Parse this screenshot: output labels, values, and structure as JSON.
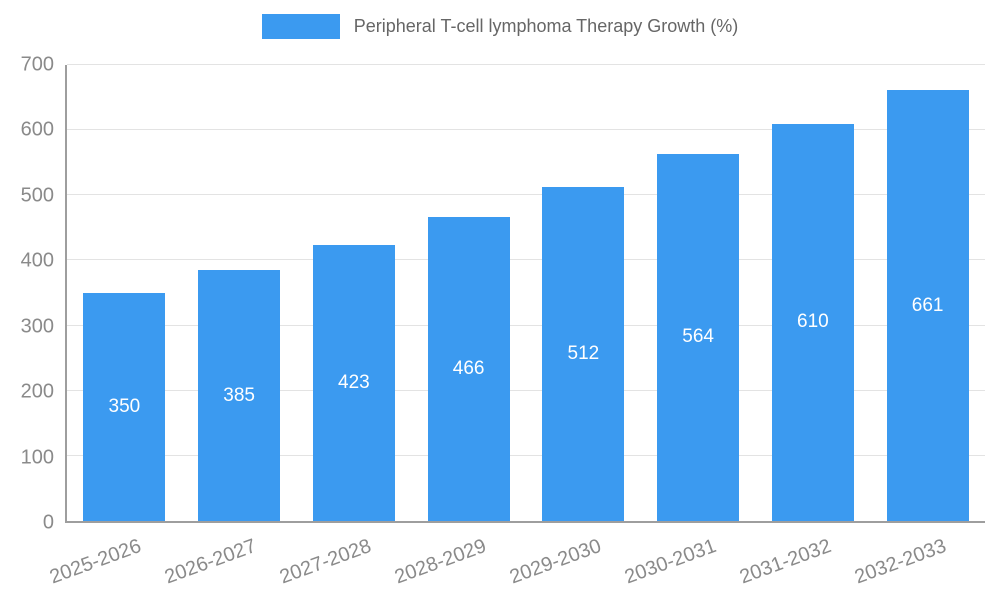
{
  "chart_data": {
    "type": "bar",
    "title": "Peripheral T-cell lymphoma Therapy Growth (%)",
    "categories": [
      "2025-2026",
      "2026-2027",
      "2027-2028",
      "2028-2029",
      "2029-2030",
      "2030-2031",
      "2031-2032",
      "2032-2033"
    ],
    "values": [
      350,
      385,
      423,
      466,
      512,
      564,
      610,
      661
    ],
    "xlabel": "",
    "ylabel": "",
    "ylim": [
      0,
      700
    ],
    "ytick_step": 100,
    "yticks": [
      "0",
      "100",
      "200",
      "300",
      "400",
      "500",
      "600",
      "700"
    ],
    "grid": true,
    "legend_position": "top",
    "bar_color": "#3b9af0",
    "value_label_color": "#ffffff",
    "axis_color": "#9e9e9e",
    "gridline_color": "#e3e3e3",
    "tick_label_color": "#8a8a8a"
  },
  "legend": {
    "label": "Peripheral T-cell lymphoma Therapy Growth (%)"
  }
}
